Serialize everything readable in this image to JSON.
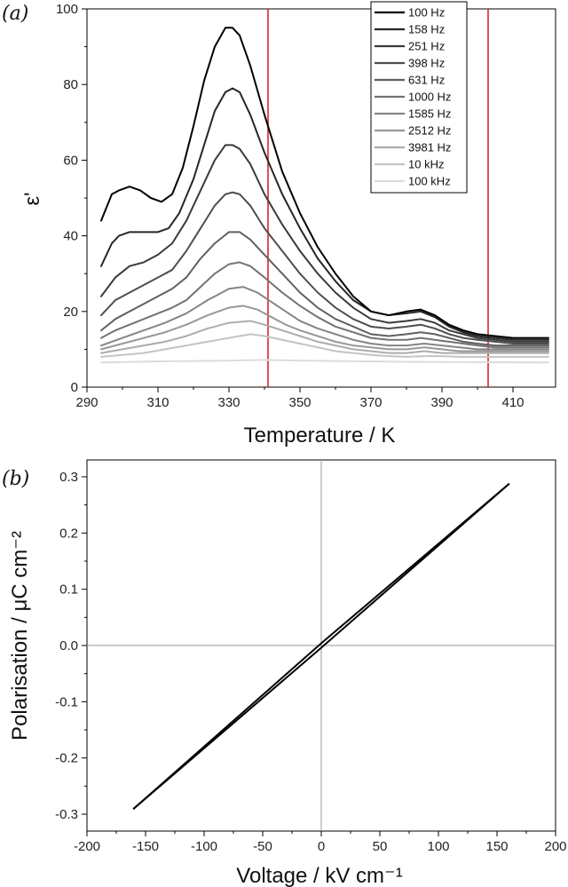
{
  "chart_data": [
    {
      "panel_label": "(a)",
      "type": "line",
      "xlabel": "Temperature / K",
      "ylabel": "ε'",
      "xlim": [
        290,
        422
      ],
      "ylim": [
        0,
        100
      ],
      "xticks": [
        290,
        310,
        330,
        350,
        370,
        390,
        410
      ],
      "yticks": [
        0,
        20,
        40,
        60,
        80,
        100
      ],
      "legend_position": "top-right",
      "vertical_lines": [
        {
          "x": 341,
          "color": "#d62728"
        },
        {
          "x": 403,
          "color": "#d62728"
        }
      ],
      "series": [
        {
          "name": "100 Hz",
          "color": "#000000",
          "x": [
            294,
            297,
            299,
            302,
            305,
            308,
            311,
            314,
            317,
            320,
            323,
            326,
            329,
            331,
            333,
            336,
            340,
            345,
            350,
            355,
            360,
            365,
            370,
            375,
            380,
            384,
            388,
            392,
            396,
            400,
            405,
            410,
            415,
            420
          ],
          "y": [
            44,
            51,
            52,
            53,
            52,
            50,
            49,
            51,
            58,
            69,
            81,
            90,
            95,
            95,
            93,
            85,
            72,
            57,
            46,
            37,
            30,
            24,
            20,
            19,
            20,
            20.5,
            19,
            16.5,
            15,
            14,
            13.5,
            13,
            13,
            13
          ]
        },
        {
          "name": "158 Hz",
          "color": "#262626",
          "x": [
            294,
            297,
            299,
            302,
            306,
            310,
            313,
            316,
            320,
            323,
            326,
            329,
            331,
            333,
            336,
            340,
            345,
            350,
            355,
            360,
            365,
            370,
            375,
            380,
            384,
            388,
            392,
            396,
            400,
            405,
            410,
            415,
            420
          ],
          "y": [
            32,
            38,
            40,
            41,
            41,
            41,
            42,
            46,
            55,
            64,
            73,
            78,
            79,
            78,
            72,
            62,
            51,
            42,
            34,
            28,
            23,
            20,
            19,
            19.5,
            20,
            18.5,
            16,
            14.5,
            13.5,
            13,
            12.5,
            12.5,
            12.5
          ]
        },
        {
          "name": "251 Hz",
          "color": "#3a3a3a",
          "x": [
            294,
            298,
            302,
            306,
            310,
            314,
            318,
            322,
            326,
            329,
            331,
            333,
            336,
            340,
            345,
            350,
            355,
            360,
            365,
            370,
            375,
            380,
            384,
            388,
            392,
            396,
            400,
            405,
            410,
            415,
            420
          ],
          "y": [
            24,
            29,
            32,
            33,
            35,
            38,
            44,
            52,
            60,
            64,
            64,
            63,
            59,
            51,
            43,
            36,
            30,
            25,
            21,
            18,
            17,
            17.5,
            18,
            17,
            15,
            14,
            13,
            12.5,
            12,
            12,
            12
          ]
        },
        {
          "name": "398 Hz",
          "color": "#4e4e4e",
          "x": [
            294,
            298,
            302,
            306,
            310,
            314,
            318,
            322,
            326,
            329,
            331,
            333,
            336,
            340,
            345,
            350,
            355,
            360,
            365,
            370,
            375,
            380,
            384,
            388,
            392,
            396,
            400,
            405,
            410,
            415,
            420
          ],
          "y": [
            19,
            23,
            25,
            27,
            29,
            31,
            36,
            42,
            48,
            51,
            51.5,
            51,
            48,
            42,
            36,
            30,
            25,
            21,
            18,
            16,
            15.5,
            16,
            16.5,
            15.5,
            14,
            13,
            12.5,
            12,
            11.5,
            11.5,
            11.5
          ]
        },
        {
          "name": "631 Hz",
          "color": "#606060",
          "x": [
            294,
            298,
            302,
            306,
            310,
            314,
            318,
            322,
            326,
            330,
            333,
            336,
            340,
            345,
            350,
            355,
            360,
            365,
            370,
            375,
            380,
            384,
            388,
            392,
            396,
            400,
            405,
            410,
            415,
            420
          ],
          "y": [
            15,
            18,
            20,
            22,
            24,
            26,
            29,
            34,
            38,
            41,
            41,
            39,
            35,
            30,
            25,
            21,
            18,
            16,
            14,
            13.5,
            14,
            14.5,
            14,
            13,
            12,
            11.5,
            11,
            11,
            11,
            11
          ]
        },
        {
          "name": "1000 Hz",
          "color": "#737373",
          "x": [
            294,
            298,
            302,
            306,
            310,
            314,
            318,
            322,
            326,
            330,
            333,
            336,
            340,
            345,
            350,
            355,
            360,
            365,
            370,
            375,
            380,
            384,
            388,
            392,
            396,
            400,
            405,
            410,
            415,
            420
          ],
          "y": [
            13,
            15,
            16.5,
            18,
            19.5,
            21,
            23,
            26.5,
            30,
            32.5,
            33,
            32,
            29,
            25,
            21.5,
            18.5,
            16,
            14.5,
            13,
            12.5,
            12.5,
            13,
            12.5,
            12,
            11.5,
            11,
            10.5,
            10.5,
            10.5,
            10.5
          ]
        },
        {
          "name": "1585 Hz",
          "color": "#858585",
          "x": [
            294,
            300,
            306,
            312,
            318,
            324,
            330,
            334,
            338,
            342,
            346,
            350,
            355,
            360,
            365,
            370,
            375,
            380,
            385,
            390,
            395,
            400,
            405,
            410,
            415,
            420
          ],
          "y": [
            11,
            13,
            15,
            17,
            19.5,
            23,
            26,
            26.5,
            25,
            22.5,
            20,
            17.5,
            15.5,
            14,
            12.5,
            11.5,
            11,
            11,
            11.5,
            11,
            10.5,
            10,
            10,
            10,
            10,
            10
          ]
        },
        {
          "name": "2512 Hz",
          "color": "#989898",
          "x": [
            294,
            300,
            306,
            312,
            318,
            324,
            330,
            334,
            338,
            342,
            346,
            350,
            355,
            360,
            365,
            370,
            375,
            380,
            385,
            390,
            395,
            400,
            405,
            410,
            415,
            420
          ],
          "y": [
            10,
            11.5,
            13,
            14.5,
            16.5,
            19,
            21,
            21.5,
            20.5,
            18.5,
            16.5,
            15,
            13.5,
            12,
            11,
            10.5,
            10,
            10,
            10.5,
            10,
            9.5,
            9.5,
            9.5,
            9.5,
            9.5,
            9.5
          ]
        },
        {
          "name": "3981 Hz",
          "color": "#acacac",
          "x": [
            294,
            300,
            306,
            312,
            318,
            324,
            330,
            336,
            340,
            345,
            350,
            355,
            360,
            365,
            370,
            375,
            380,
            385,
            390,
            395,
            400,
            405,
            410,
            415,
            420
          ],
          "y": [
            9,
            10,
            11,
            12,
            13.5,
            15.5,
            17,
            17.5,
            16.5,
            15,
            13.5,
            12,
            11,
            10,
            9.5,
            9,
            9,
            9.5,
            9,
            9,
            9,
            9,
            9,
            9,
            9
          ]
        },
        {
          "name": "10 kHz",
          "color": "#c4c4c4",
          "x": [
            294,
            300,
            306,
            312,
            318,
            324,
            330,
            336,
            340,
            345,
            350,
            355,
            360,
            365,
            370,
            375,
            380,
            385,
            390,
            395,
            400,
            405,
            410,
            415,
            420
          ],
          "y": [
            8,
            8.5,
            9,
            10,
            11,
            12,
            13,
            14,
            13.5,
            12.5,
            11.5,
            10.5,
            9.5,
            9,
            8.5,
            8.2,
            8,
            8.2,
            8.2,
            8,
            8,
            8,
            8,
            8,
            8
          ]
        },
        {
          "name": "100 kHz",
          "color": "#dcdcdc",
          "x": [
            294,
            310,
            330,
            340,
            350,
            360,
            380,
            400,
            420
          ],
          "y": [
            6.5,
            6.8,
            7,
            7.2,
            7,
            6.9,
            6.7,
            6.6,
            6.5
          ]
        }
      ]
    },
    {
      "panel_label": "(b)",
      "type": "line",
      "xlabel": "Voltage / kV cm⁻¹",
      "ylabel": "Polarisation / μC cm⁻²",
      "xlim": [
        -200,
        200
      ],
      "ylim": [
        -0.33,
        0.33
      ],
      "xticks": [
        -200,
        -150,
        -100,
        -50,
        0,
        50,
        100,
        150,
        200
      ],
      "yticks": [
        -0.3,
        -0.2,
        -0.1,
        0.0,
        0.1,
        0.2,
        0.3
      ],
      "ytick_labels": [
        "-0.3",
        "-0.2",
        "-0.1",
        "0.0",
        "0.1",
        "0.2",
        "0.3"
      ],
      "zero_lines": true,
      "series": [
        {
          "color": "#000000",
          "x": [
            -160,
            0,
            160
          ],
          "y": [
            -0.29,
            -0.004,
            0.287
          ]
        },
        {
          "color": "#000000",
          "x": [
            160,
            0,
            -160
          ],
          "y": [
            0.287,
            0.004,
            -0.29
          ]
        }
      ]
    }
  ]
}
